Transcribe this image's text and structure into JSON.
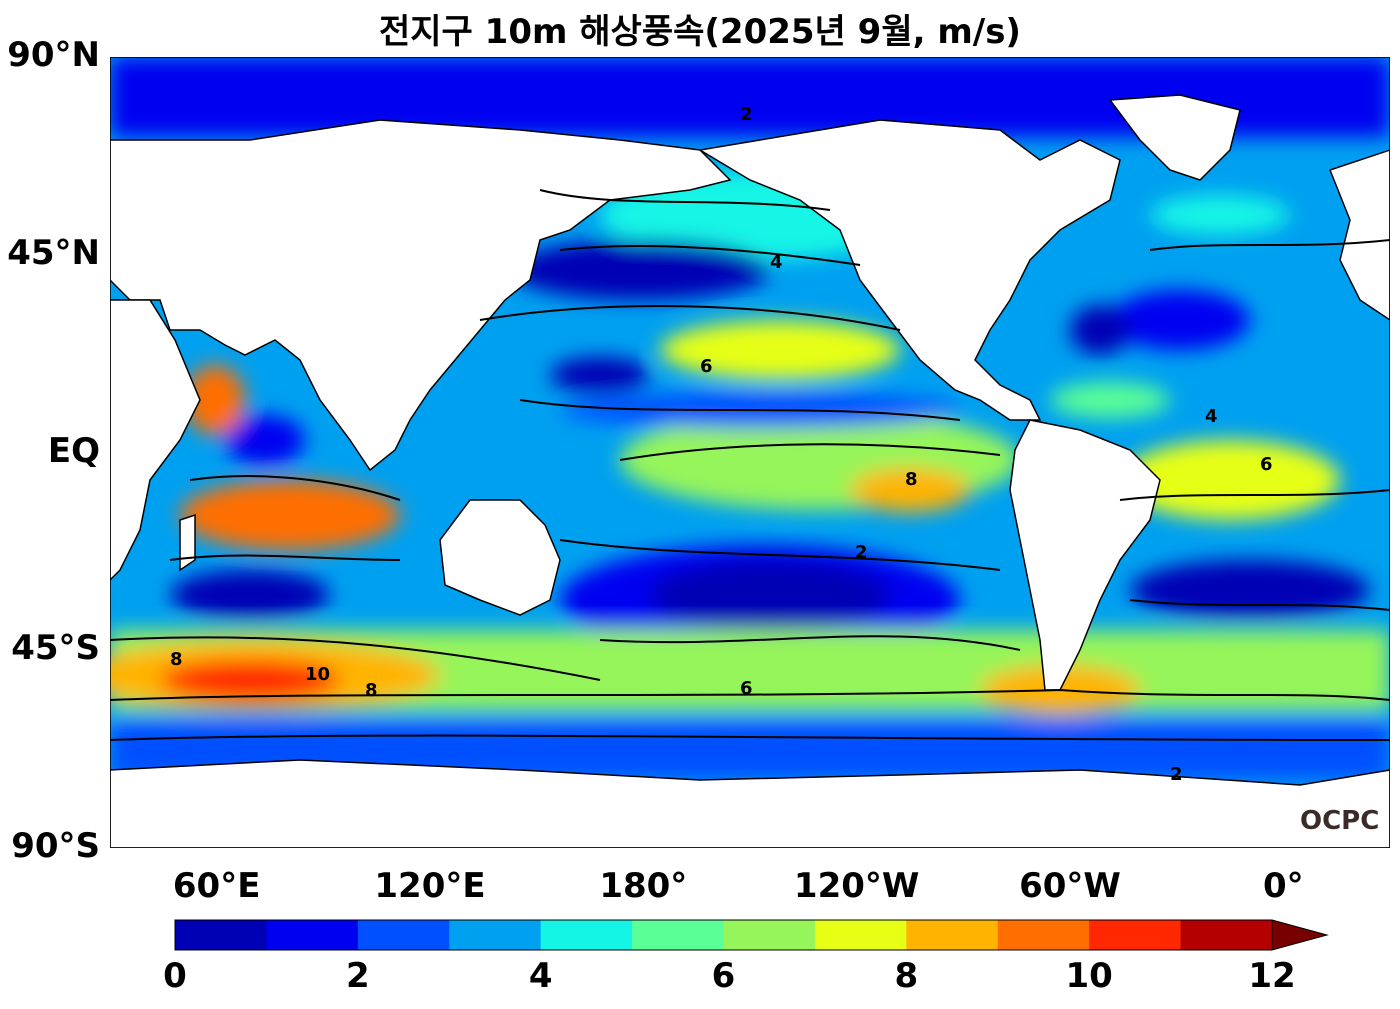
{
  "title": "전지구 10m 해상풍속(2025년 9월, m/s)",
  "lat_labels": [
    {
      "label": "90°N",
      "lat": 90
    },
    {
      "label": "45°N",
      "lat": 45
    },
    {
      "label": "EQ",
      "lat": 0
    },
    {
      "label": "45°S",
      "lat": -45
    },
    {
      "label": "90°S",
      "lat": -90
    }
  ],
  "lon_labels": [
    {
      "label": "60°E",
      "lon": 60
    },
    {
      "label": "120°E",
      "lon": 120
    },
    {
      "label": "180°",
      "lon": 180
    },
    {
      "label": "120°W",
      "lon": 240
    },
    {
      "label": "60°W",
      "lon": 300
    },
    {
      "label": "0°",
      "lon": 360
    }
  ],
  "colorbar": {
    "levels": [
      0,
      1,
      2,
      3,
      4,
      5,
      6,
      7,
      8,
      9,
      10,
      11,
      12
    ],
    "tick_labels": [
      "0",
      "2",
      "4",
      "6",
      "8",
      "10",
      "12"
    ],
    "colors": [
      "#0000b4",
      "#0000f0",
      "#0050ff",
      "#00a0f0",
      "#14f5e6",
      "#5aff96",
      "#96f55a",
      "#e6ff14",
      "#ffb400",
      "#ff6e00",
      "#ff2800",
      "#b40000"
    ],
    "extend_color": "#780000"
  },
  "contour_labels": [
    "2",
    "4",
    "6",
    "8",
    "10"
  ],
  "logo": "OCPC"
}
